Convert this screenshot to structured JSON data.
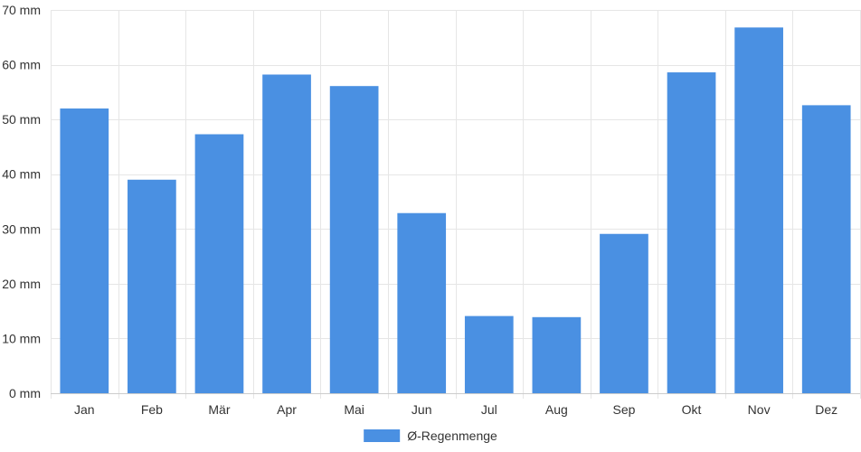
{
  "chart_data": {
    "type": "bar",
    "categories": [
      "Jan",
      "Feb",
      "Mär",
      "Apr",
      "Mai",
      "Jun",
      "Jul",
      "Aug",
      "Sep",
      "Okt",
      "Nov",
      "Dez"
    ],
    "series": [
      {
        "name": "Ø-Regenmenge",
        "color": "#4a90e2",
        "values": [
          52,
          39,
          47.3,
          58.2,
          56.1,
          32.9,
          14.1,
          13.9,
          29.1,
          58.6,
          66.8,
          52.6
        ]
      }
    ],
    "title": "",
    "xlabel": "",
    "ylabel": "",
    "y_unit": "mm",
    "ylim": [
      0,
      70
    ],
    "yticks": [
      0,
      10,
      20,
      30,
      40,
      50,
      60,
      70
    ],
    "y_tick_labels": [
      "0 mm",
      "10 mm",
      "20 mm",
      "30 mm",
      "40 mm",
      "50 mm",
      "60 mm",
      "70 mm"
    ],
    "grid": true,
    "legend_position": "bottom-center"
  }
}
